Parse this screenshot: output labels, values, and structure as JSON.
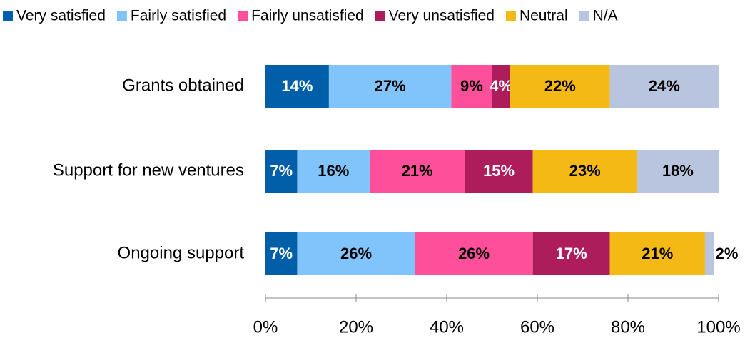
{
  "chart_data": {
    "type": "stacked-bar-horizontal",
    "categories": [
      "Grants obtained",
      "Support for new ventures",
      "Ongoing support"
    ],
    "series": [
      {
        "name": "Very satisfied",
        "color": "#005fa8",
        "values": [
          14,
          7,
          7
        ],
        "value_labels": [
          "14%",
          "7%",
          "7%"
        ]
      },
      {
        "name": "Fairly satisfied",
        "color": "#80c4fb",
        "values": [
          27,
          16,
          26
        ],
        "value_labels": [
          "27%",
          "16%",
          "26%"
        ]
      },
      {
        "name": "Fairly unsatisfied",
        "color": "#fe4f9a",
        "values": [
          9,
          21,
          26
        ],
        "value_labels": [
          "9%",
          "21%",
          "26%"
        ]
      },
      {
        "name": "Very unsatisfied",
        "color": "#ae1d5b",
        "values": [
          4,
          15,
          17
        ],
        "value_labels": [
          "4%",
          "15%",
          "17%"
        ]
      },
      {
        "name": "Neutral",
        "color": "#f4b914",
        "values": [
          22,
          23,
          21
        ],
        "value_labels": [
          "22%",
          "23%",
          "21%"
        ]
      },
      {
        "name": "N/A",
        "color": "#b9c5de",
        "values": [
          24,
          18,
          2
        ],
        "value_labels": [
          "24%",
          "18%",
          "2%"
        ]
      }
    ],
    "xlim": [
      0,
      100
    ],
    "xticks": [
      {
        "value": 0,
        "label": "0%"
      },
      {
        "value": 20,
        "label": "20%"
      },
      {
        "value": 40,
        "label": "40%"
      },
      {
        "value": 60,
        "label": "60%"
      },
      {
        "value": 80,
        "label": "80%"
      },
      {
        "value": 100,
        "label": "100%"
      }
    ],
    "legend": "top"
  }
}
